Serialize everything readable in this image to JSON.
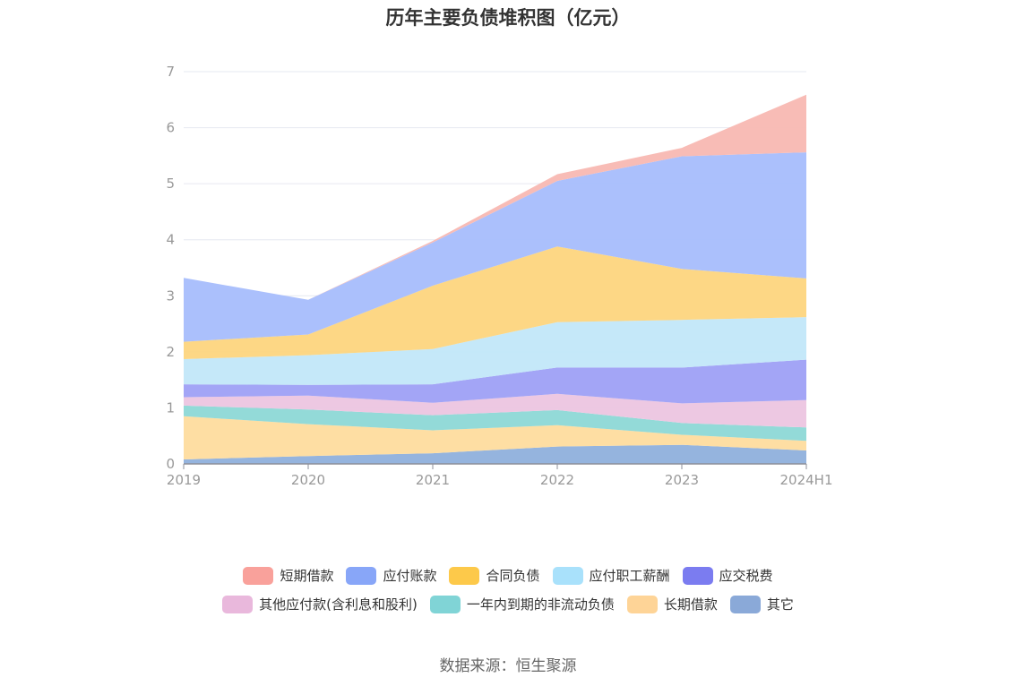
{
  "title": "历年主要负债堆积图（亿元）",
  "source": "数据来源：恒生聚源",
  "chart_data": {
    "type": "area",
    "stacked": true,
    "title": "历年主要负债堆积图（亿元）",
    "categories": [
      "2019",
      "2020",
      "2021",
      "2022",
      "2023",
      "2024H1"
    ],
    "ylim": [
      0,
      7
    ],
    "yticks": [
      "0",
      "1",
      "2",
      "3",
      "4",
      "5",
      "6",
      "7"
    ],
    "grid": true,
    "legend_position": "bottom",
    "series": [
      {
        "name": "其它",
        "color": "#8fb0dc",
        "values": [
          0.08,
          0.14,
          0.19,
          0.31,
          0.34,
          0.24
        ]
      },
      {
        "name": "长期借款",
        "color": "#fedc9e",
        "values": [
          0.77,
          0.57,
          0.41,
          0.38,
          0.18,
          0.17
        ]
      },
      {
        "name": "一年内到期的非流动负债",
        "color": "#8dd8d6",
        "values": [
          0.19,
          0.26,
          0.27,
          0.27,
          0.21,
          0.24
        ]
      },
      {
        "name": "其他应付款(含利息和股利)",
        "color": "#ecc5e0",
        "values": [
          0.15,
          0.25,
          0.22,
          0.29,
          0.35,
          0.49
        ]
      },
      {
        "name": "应交税费",
        "color": "#9ea0f5",
        "values": [
          0.23,
          0.19,
          0.33,
          0.47,
          0.64,
          0.72
        ]
      },
      {
        "name": "应付职工薪酬",
        "color": "#c2e7f9",
        "values": [
          0.45,
          0.53,
          0.63,
          0.81,
          0.85,
          0.76
        ]
      },
      {
        "name": "合同负债",
        "color": "#fdd57e",
        "values": [
          0.31,
          0.37,
          1.13,
          1.35,
          0.91,
          0.69
        ]
      },
      {
        "name": "应付账款",
        "color": "#a6bdfc",
        "values": [
          1.14,
          0.62,
          0.77,
          1.17,
          2.01,
          2.25
        ]
      },
      {
        "name": "短期借款",
        "color": "#f8b8b2",
        "values": [
          0.0,
          0.0,
          0.03,
          0.12,
          0.15,
          1.03
        ]
      }
    ]
  },
  "legend": {
    "row1": [
      {
        "label": "短期借款",
        "color": "#f9a19b"
      },
      {
        "label": "应付账款",
        "color": "#88a6f8"
      },
      {
        "label": "合同负债",
        "color": "#fdc94a"
      },
      {
        "label": "应付职工薪酬",
        "color": "#a9e1fb"
      },
      {
        "label": "应交税费",
        "color": "#7b7cf0"
      }
    ],
    "row2": [
      {
        "label": "其他应付款(含利息和股利)",
        "color": "#e9b8dc"
      },
      {
        "label": "一年内到期的非流动负债",
        "color": "#80d4d6"
      },
      {
        "label": "长期借款",
        "color": "#fed497"
      },
      {
        "label": "其它",
        "color": "#8aa9d8"
      }
    ]
  }
}
